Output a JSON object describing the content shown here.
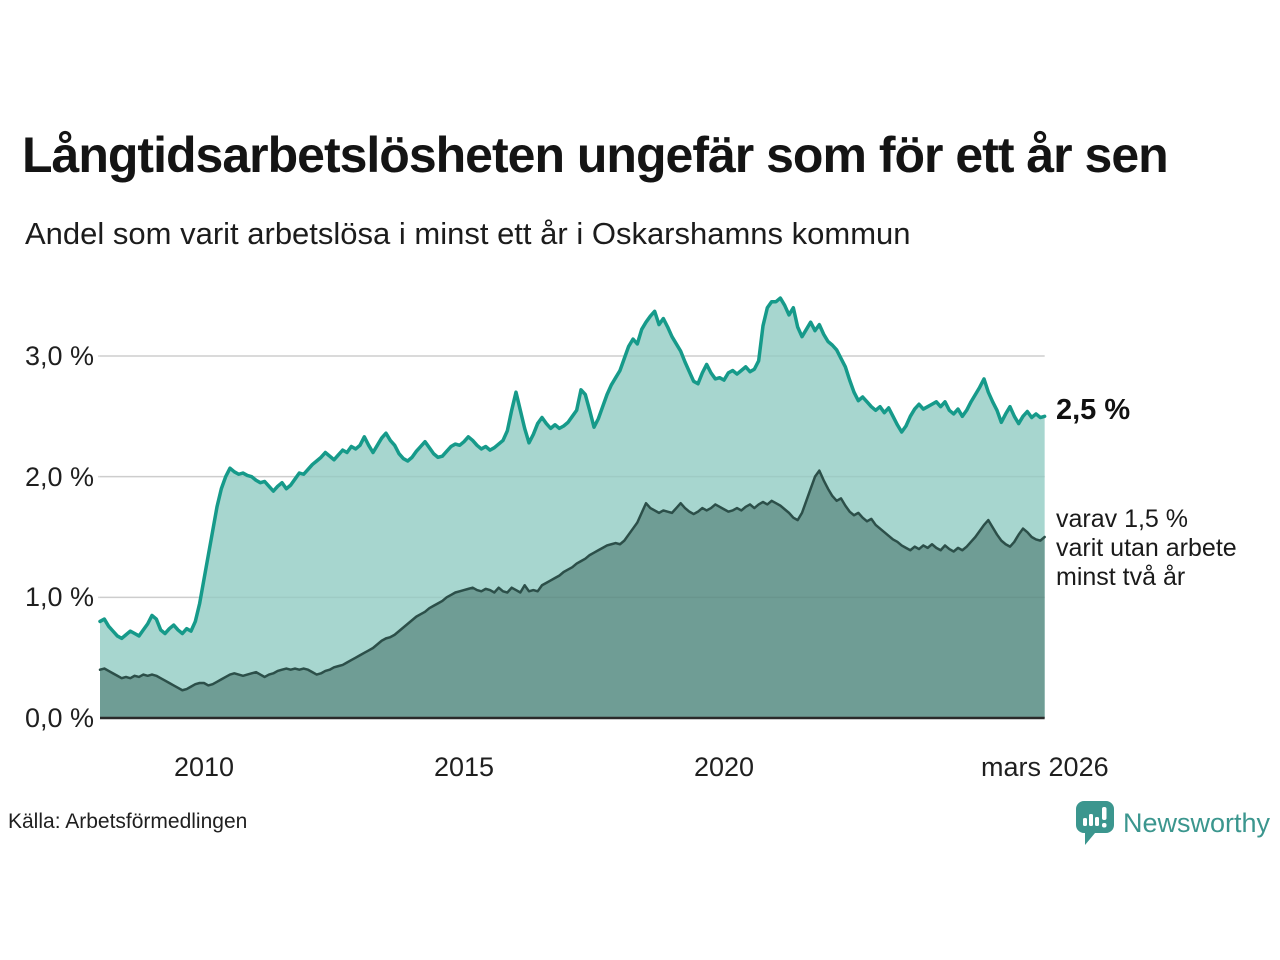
{
  "header": {
    "title": "Långtidsarbetslösheten ungefär som för ett år sen",
    "subtitle": "Andel som varit arbetslösa i minst ett år i Oskarshamns kommun"
  },
  "annotations": {
    "end_value_label": "2,5 %",
    "secondary_label_lines": [
      "varav 1,5 %",
      "varit utan arbete",
      "minst två år"
    ]
  },
  "axes": {
    "y_ticks": [
      "3,0 %",
      "2,0 %",
      "1,0 %",
      "0,0 %"
    ],
    "x_ticks": [
      "2010",
      "2015",
      "2020",
      "mars 2026"
    ]
  },
  "footer": {
    "source": "Källa: Arbetsförmedlingen",
    "logo_text": "Newsworthy"
  },
  "colors": {
    "brand_teal": "#3b968e",
    "line_primary": "#169a8a",
    "fill_primary": "#a7d6cf",
    "line_secondary": "#2c4f49",
    "fill_secondary": "#6f9d95",
    "gridline": "#d9d9d9",
    "baseline": "#2a2a2a"
  },
  "chart_data": {
    "type": "area",
    "title": "Långtidsarbetslösheten ungefär som för ett år sen",
    "subtitle": "Andel som varit arbetslösa i minst ett år i Oskarshamns kommun",
    "unit": "%",
    "x_start": 2008.0,
    "x_step_years": 0.083333,
    "ylim": [
      0,
      3.6
    ],
    "grid": "horizontal",
    "y_tick_values": [
      3.0,
      2.0,
      1.0,
      0.0
    ],
    "x_tick_years": [
      2010,
      2015,
      2020,
      2026.17
    ],
    "series": [
      {
        "name": "Andel arbetslösa minst ett år",
        "end_value": 2.5,
        "line_color": "#169a8a",
        "fill_color": "#a7d6cf",
        "line_width": 3.5,
        "values": [
          0.8,
          0.82,
          0.76,
          0.72,
          0.68,
          0.66,
          0.69,
          0.72,
          0.7,
          0.68,
          0.73,
          0.78,
          0.85,
          0.82,
          0.73,
          0.7,
          0.74,
          0.77,
          0.73,
          0.7,
          0.74,
          0.72,
          0.8,
          0.95,
          1.15,
          1.35,
          1.55,
          1.75,
          1.9,
          2.0,
          2.07,
          2.04,
          2.02,
          2.03,
          2.01,
          2.0,
          1.97,
          1.95,
          1.96,
          1.92,
          1.88,
          1.92,
          1.95,
          1.9,
          1.93,
          1.98,
          2.03,
          2.02,
          2.06,
          2.1,
          2.13,
          2.16,
          2.2,
          2.17,
          2.14,
          2.18,
          2.22,
          2.2,
          2.25,
          2.23,
          2.26,
          2.33,
          2.26,
          2.2,
          2.26,
          2.32,
          2.36,
          2.3,
          2.26,
          2.19,
          2.15,
          2.13,
          2.16,
          2.21,
          2.25,
          2.29,
          2.24,
          2.19,
          2.16,
          2.17,
          2.21,
          2.25,
          2.27,
          2.26,
          2.29,
          2.33,
          2.3,
          2.26,
          2.23,
          2.25,
          2.22,
          2.24,
          2.27,
          2.3,
          2.38,
          2.55,
          2.7,
          2.55,
          2.4,
          2.28,
          2.35,
          2.44,
          2.49,
          2.44,
          2.4,
          2.43,
          2.4,
          2.42,
          2.45,
          2.5,
          2.55,
          2.72,
          2.68,
          2.55,
          2.41,
          2.48,
          2.58,
          2.68,
          2.76,
          2.82,
          2.88,
          2.98,
          3.08,
          3.14,
          3.1,
          3.22,
          3.28,
          3.33,
          3.37,
          3.26,
          3.31,
          3.24,
          3.16,
          3.1,
          3.04,
          2.95,
          2.87,
          2.79,
          2.77,
          2.86,
          2.93,
          2.86,
          2.81,
          2.82,
          2.8,
          2.86,
          2.88,
          2.85,
          2.88,
          2.91,
          2.87,
          2.89,
          2.96,
          3.25,
          3.4,
          3.45,
          3.45,
          3.48,
          3.42,
          3.34,
          3.4,
          3.24,
          3.16,
          3.22,
          3.28,
          3.21,
          3.26,
          3.18,
          3.12,
          3.09,
          3.05,
          2.98,
          2.91,
          2.8,
          2.7,
          2.63,
          2.66,
          2.62,
          2.58,
          2.55,
          2.58,
          2.53,
          2.57,
          2.5,
          2.43,
          2.37,
          2.42,
          2.5,
          2.56,
          2.6,
          2.56,
          2.58,
          2.6,
          2.62,
          2.58,
          2.62,
          2.55,
          2.52,
          2.56,
          2.5,
          2.55,
          2.62,
          2.68,
          2.74,
          2.81,
          2.7,
          2.62,
          2.55,
          2.45,
          2.52,
          2.58,
          2.5,
          2.44,
          2.5,
          2.54,
          2.49,
          2.52,
          2.49,
          2.5
        ]
      },
      {
        "name": "varav utan arbete minst två år",
        "end_value": 1.5,
        "line_color": "#2c4f49",
        "fill_color": "#6f9d95",
        "line_width": 2.5,
        "values": [
          0.4,
          0.41,
          0.39,
          0.37,
          0.35,
          0.33,
          0.34,
          0.33,
          0.35,
          0.34,
          0.36,
          0.35,
          0.36,
          0.35,
          0.33,
          0.31,
          0.29,
          0.27,
          0.25,
          0.23,
          0.24,
          0.26,
          0.28,
          0.29,
          0.29,
          0.27,
          0.28,
          0.3,
          0.32,
          0.34,
          0.36,
          0.37,
          0.36,
          0.35,
          0.36,
          0.37,
          0.38,
          0.36,
          0.34,
          0.36,
          0.37,
          0.39,
          0.4,
          0.41,
          0.4,
          0.41,
          0.4,
          0.41,
          0.4,
          0.38,
          0.36,
          0.37,
          0.39,
          0.4,
          0.42,
          0.43,
          0.44,
          0.46,
          0.48,
          0.5,
          0.52,
          0.54,
          0.56,
          0.58,
          0.61,
          0.64,
          0.66,
          0.67,
          0.69,
          0.72,
          0.75,
          0.78,
          0.81,
          0.84,
          0.86,
          0.88,
          0.91,
          0.93,
          0.95,
          0.97,
          1.0,
          1.02,
          1.04,
          1.05,
          1.06,
          1.07,
          1.08,
          1.06,
          1.05,
          1.07,
          1.06,
          1.04,
          1.08,
          1.05,
          1.04,
          1.08,
          1.06,
          1.04,
          1.1,
          1.05,
          1.06,
          1.05,
          1.1,
          1.12,
          1.14,
          1.16,
          1.18,
          1.21,
          1.23,
          1.25,
          1.28,
          1.3,
          1.32,
          1.35,
          1.37,
          1.39,
          1.41,
          1.43,
          1.44,
          1.45,
          1.44,
          1.47,
          1.52,
          1.57,
          1.62,
          1.7,
          1.78,
          1.74,
          1.72,
          1.7,
          1.72,
          1.71,
          1.7,
          1.74,
          1.78,
          1.74,
          1.71,
          1.69,
          1.71,
          1.74,
          1.72,
          1.74,
          1.77,
          1.75,
          1.73,
          1.71,
          1.72,
          1.74,
          1.72,
          1.75,
          1.77,
          1.74,
          1.77,
          1.79,
          1.77,
          1.8,
          1.78,
          1.76,
          1.73,
          1.7,
          1.66,
          1.64,
          1.7,
          1.8,
          1.9,
          2.0,
          2.05,
          1.97,
          1.9,
          1.84,
          1.8,
          1.82,
          1.76,
          1.71,
          1.68,
          1.7,
          1.66,
          1.63,
          1.65,
          1.6,
          1.57,
          1.54,
          1.51,
          1.48,
          1.46,
          1.43,
          1.41,
          1.39,
          1.42,
          1.4,
          1.43,
          1.41,
          1.44,
          1.41,
          1.39,
          1.43,
          1.4,
          1.38,
          1.41,
          1.39,
          1.42,
          1.46,
          1.5,
          1.55,
          1.6,
          1.64,
          1.58,
          1.52,
          1.47,
          1.44,
          1.42,
          1.46,
          1.52,
          1.57,
          1.54,
          1.5,
          1.48,
          1.47,
          1.5
        ]
      }
    ]
  }
}
